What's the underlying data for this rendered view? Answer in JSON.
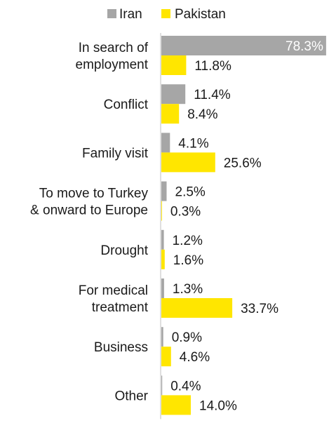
{
  "chart_data": {
    "type": "bar",
    "orientation": "horizontal",
    "categories": [
      [
        "In search of",
        "employment"
      ],
      [
        "Conflict"
      ],
      [
        "Family visit"
      ],
      [
        "To move to Turkey",
        "& onward to Europe"
      ],
      [
        "Drought"
      ],
      [
        "For medical",
        "treatment"
      ],
      [
        "Business"
      ],
      [
        "Other"
      ]
    ],
    "series": [
      {
        "name": "Iran",
        "color": "#a6a6a6",
        "values": [
          78.3,
          11.4,
          4.1,
          2.5,
          1.2,
          1.3,
          0.9,
          0.4
        ],
        "labels": [
          "78.3%",
          "11.4%",
          "4.1%",
          "2.5%",
          "1.2%",
          "1.3%",
          "0.9%",
          "0.4%"
        ]
      },
      {
        "name": "Pakistan",
        "color": "#ffe600",
        "values": [
          11.8,
          8.4,
          25.6,
          0.3,
          1.6,
          33.7,
          4.6,
          14.0
        ],
        "labels": [
          "11.8%",
          "8.4%",
          "25.6%",
          "0.3%",
          "1.6%",
          "33.7%",
          "4.6%",
          "14.0%"
        ]
      }
    ],
    "legend": "top",
    "grid": false,
    "unit": "%"
  }
}
